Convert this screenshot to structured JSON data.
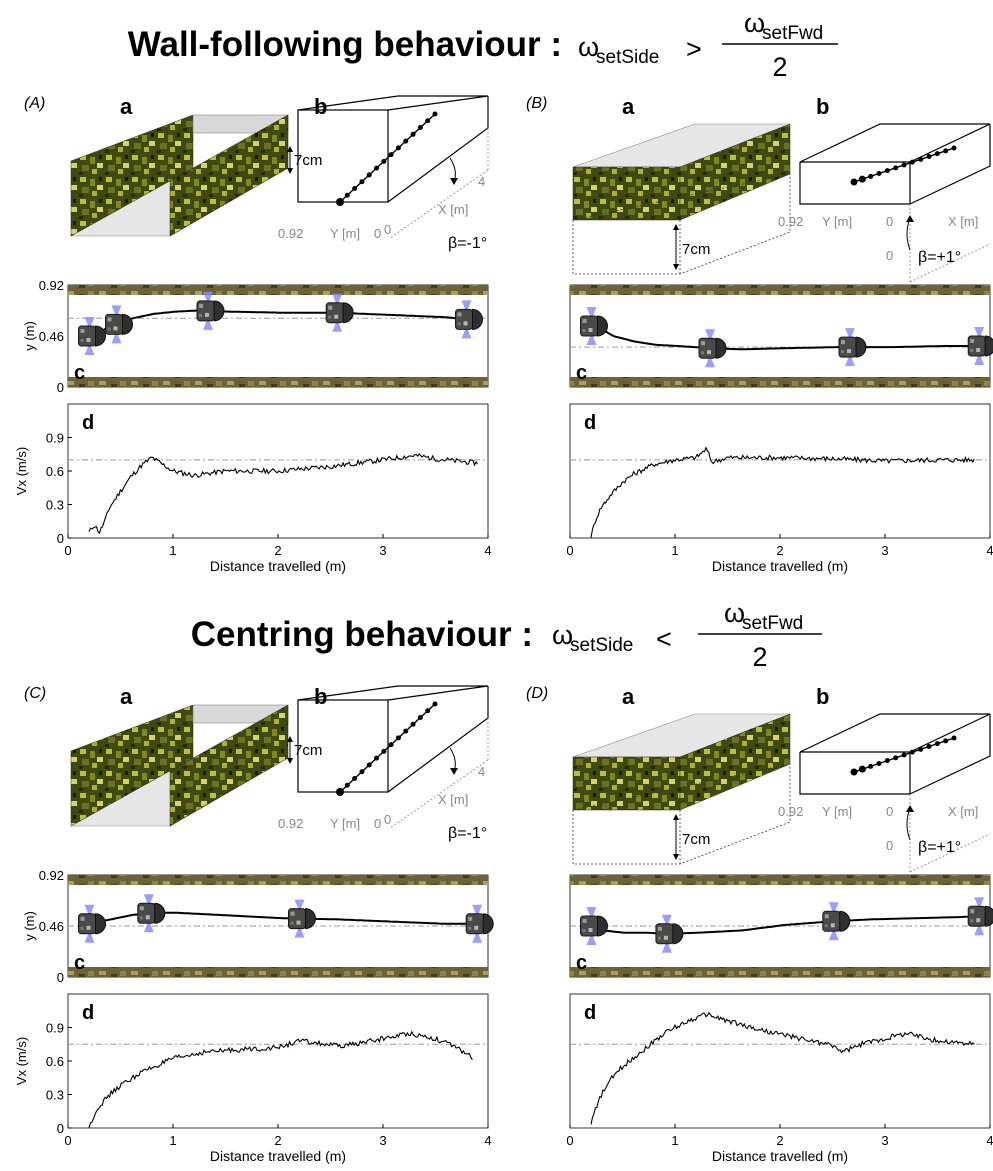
{
  "headings": [
    {
      "label": "Wall-following behaviour :",
      "omega": "ω",
      "sub_side": "setSide",
      "op": ">",
      "sub_fwd": "setFwd",
      "den": "2"
    },
    {
      "label": "Centring behaviour :",
      "omega": "ω",
      "sub_side": "setSide",
      "op": "<",
      "sub_fwd": "setFwd",
      "den": "2"
    }
  ],
  "labels": {
    "a": "a",
    "b": "b",
    "c": "c",
    "d": "d",
    "wall_height": "7cm",
    "x_axis": "X [m]",
    "y_axis": "Y [m]",
    "x_max": "4",
    "y_max": "0.92",
    "zero": "0",
    "y_ylabel": "y (m)",
    "vx_ylabel": "Vx (m/s)",
    "xlabel": "Distance travelled (m)"
  },
  "panels": [
    {
      "id": "(A)",
      "beta": "β=-1°",
      "layout": "narrowing"
    },
    {
      "id": "(B)",
      "beta": "β=+1°",
      "layout": "widening"
    },
    {
      "id": "(C)",
      "beta": "β=-1°",
      "layout": "narrowing"
    },
    {
      "id": "(D)",
      "beta": "β=+1°",
      "layout": "widening"
    }
  ],
  "chart_data": [
    {
      "panel": "A",
      "type": "line",
      "subplot": "c",
      "xlabel": "",
      "ylabel": "y (m)",
      "xlim": [
        0,
        3.9
      ],
      "ylim": [
        0,
        0.92
      ],
      "yticks": [
        0,
        0.46,
        0.92
      ],
      "set_line": 0.62,
      "x": [
        0.2,
        0.3,
        0.4,
        0.5,
        0.6,
        0.8,
        1.0,
        1.2,
        1.5,
        2.0,
        2.5,
        3.0,
        3.5,
        3.8
      ],
      "y": [
        0.46,
        0.5,
        0.55,
        0.58,
        0.62,
        0.66,
        0.68,
        0.69,
        0.68,
        0.67,
        0.67,
        0.65,
        0.63,
        0.6
      ],
      "robots_at": [
        0.2,
        0.45,
        1.3,
        2.5,
        3.7
      ]
    },
    {
      "panel": "A",
      "type": "line",
      "subplot": "d",
      "xlabel": "Distance travelled (m)",
      "ylabel": "Vx (m/s)",
      "xlim": [
        0,
        4
      ],
      "ylim": [
        0,
        1.2
      ],
      "xticks": [
        0,
        1,
        2,
        3,
        4
      ],
      "yticks": [
        0,
        0.3,
        0.6,
        0.9
      ],
      "set_line": 0.7,
      "x": [
        0.2,
        0.25,
        0.3,
        0.35,
        0.4,
        0.5,
        0.6,
        0.7,
        0.8,
        0.9,
        1.0,
        1.2,
        1.5,
        2.0,
        2.5,
        3.0,
        3.3,
        3.5,
        3.9
      ],
      "y": [
        0.05,
        0.12,
        0.05,
        0.15,
        0.28,
        0.42,
        0.55,
        0.65,
        0.72,
        0.66,
        0.6,
        0.56,
        0.6,
        0.6,
        0.64,
        0.7,
        0.74,
        0.71,
        0.67
      ]
    },
    {
      "panel": "B",
      "type": "line",
      "subplot": "c",
      "xlabel": "",
      "ylabel": "",
      "xlim": [
        0,
        3.9
      ],
      "ylim": [
        0,
        0.92
      ],
      "set_line": 0.36,
      "x": [
        0.2,
        0.3,
        0.4,
        0.6,
        0.8,
        1.0,
        1.3,
        1.6,
        2.0,
        2.5,
        3.0,
        3.5,
        3.85
      ],
      "y": [
        0.55,
        0.52,
        0.46,
        0.41,
        0.38,
        0.37,
        0.35,
        0.34,
        0.35,
        0.36,
        0.36,
        0.37,
        0.37
      ],
      "robots_at": [
        0.2,
        1.3,
        2.6,
        3.8
      ]
    },
    {
      "panel": "B",
      "type": "line",
      "subplot": "d",
      "xlabel": "Distance travelled (m)",
      "ylabel": "",
      "xlim": [
        0,
        4
      ],
      "ylim": [
        0,
        1.2
      ],
      "xticks": [
        0,
        1,
        2,
        3,
        4
      ],
      "set_line": 0.7,
      "x": [
        0.2,
        0.25,
        0.3,
        0.4,
        0.5,
        0.6,
        0.8,
        1.0,
        1.2,
        1.3,
        1.35,
        1.5,
        2.0,
        2.5,
        3.0,
        3.5,
        3.85
      ],
      "y": [
        0.02,
        0.18,
        0.28,
        0.4,
        0.5,
        0.57,
        0.66,
        0.7,
        0.72,
        0.8,
        0.68,
        0.72,
        0.72,
        0.71,
        0.69,
        0.7,
        0.7
      ]
    },
    {
      "panel": "C",
      "type": "line",
      "subplot": "c",
      "xlabel": "",
      "ylabel": "y (m)",
      "xlim": [
        0,
        3.9
      ],
      "ylim": [
        0,
        0.92
      ],
      "yticks": [
        0,
        0.46,
        0.92
      ],
      "set_line": 0.46,
      "x": [
        0.2,
        0.4,
        0.6,
        0.8,
        1.0,
        1.4,
        2.0,
        2.5,
        3.0,
        3.5,
        3.85
      ],
      "y": [
        0.48,
        0.52,
        0.56,
        0.58,
        0.58,
        0.56,
        0.53,
        0.52,
        0.5,
        0.48,
        0.48
      ],
      "robots_at": [
        0.2,
        0.75,
        2.15,
        3.8
      ]
    },
    {
      "panel": "C",
      "type": "line",
      "subplot": "d",
      "xlabel": "Distance travelled (m)",
      "ylabel": "Vx (m/s)",
      "xlim": [
        0,
        4
      ],
      "ylim": [
        0,
        1.2
      ],
      "xticks": [
        0,
        1,
        2,
        3,
        4
      ],
      "yticks": [
        0,
        0.3,
        0.6,
        0.9
      ],
      "set_line": 0.75,
      "x": [
        0.2,
        0.25,
        0.3,
        0.4,
        0.5,
        0.7,
        1.0,
        1.3,
        1.6,
        2.0,
        2.2,
        2.6,
        3.0,
        3.25,
        3.5,
        3.7,
        3.85
      ],
      "y": [
        0.0,
        0.12,
        0.2,
        0.3,
        0.38,
        0.5,
        0.62,
        0.68,
        0.7,
        0.72,
        0.78,
        0.73,
        0.8,
        0.85,
        0.8,
        0.72,
        0.63
      ]
    },
    {
      "panel": "D",
      "type": "line",
      "subplot": "c",
      "xlabel": "",
      "ylabel": "",
      "xlim": [
        0,
        3.9
      ],
      "ylim": [
        0,
        0.92
      ],
      "set_line": 0.46,
      "x": [
        0.2,
        0.3,
        0.5,
        0.7,
        0.9,
        1.2,
        1.6,
        2.0,
        2.4,
        2.8,
        3.2,
        3.6,
        3.85
      ],
      "y": [
        0.46,
        0.42,
        0.4,
        0.4,
        0.39,
        0.4,
        0.42,
        0.47,
        0.5,
        0.52,
        0.53,
        0.54,
        0.55
      ],
      "robots_at": [
        0.2,
        0.9,
        2.45,
        3.8
      ]
    },
    {
      "panel": "D",
      "type": "line",
      "subplot": "d",
      "xlabel": "Distance travelled (m)",
      "ylabel": "",
      "xlim": [
        0,
        4
      ],
      "ylim": [
        0,
        1.2
      ],
      "xticks": [
        0,
        1,
        2,
        3,
        4
      ],
      "set_line": 0.75,
      "x": [
        0.2,
        0.25,
        0.3,
        0.4,
        0.5,
        0.7,
        0.9,
        1.1,
        1.3,
        1.5,
        1.8,
        2.2,
        2.5,
        2.6,
        2.8,
        3.0,
        3.2,
        3.5,
        3.85
      ],
      "y": [
        0.05,
        0.18,
        0.3,
        0.45,
        0.55,
        0.7,
        0.85,
        0.95,
        1.02,
        0.96,
        0.88,
        0.8,
        0.74,
        0.68,
        0.76,
        0.8,
        0.85,
        0.78,
        0.75
      ]
    }
  ]
}
